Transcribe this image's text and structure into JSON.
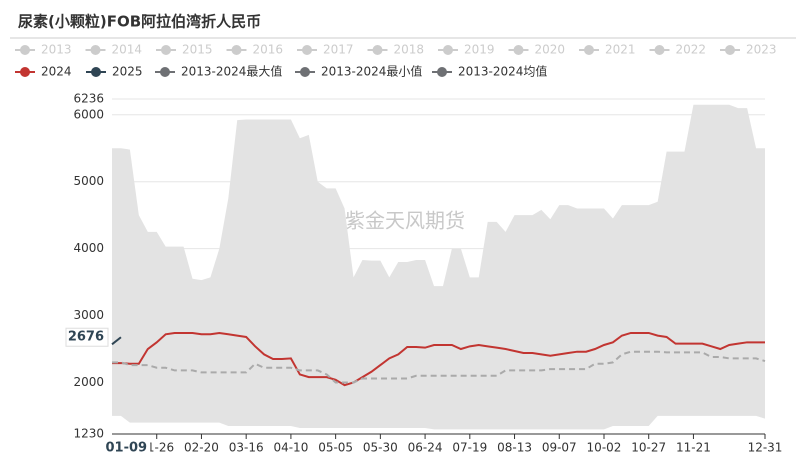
{
  "chart_data": {
    "type": "line",
    "title": "尿素(小颗粒)FOB阿拉伯湾折人民币",
    "watermark": "紫金天风期货",
    "hidden_legend": [
      "2013",
      "2014",
      "2015",
      "2016",
      "2017",
      "2018",
      "2019",
      "2020",
      "2021",
      "2022",
      "2023"
    ],
    "hidden_color": "#cccccc",
    "categories": [
      null,
      null,
      null,
      null,
      null,
      "01-26",
      null,
      null,
      null,
      null,
      "02-20",
      null,
      null,
      null,
      null,
      "03-16",
      null,
      null,
      null,
      null,
      "04-10",
      null,
      null,
      null,
      null,
      "05-05",
      null,
      null,
      null,
      null,
      "05-30",
      null,
      null,
      null,
      null,
      "06-24",
      null,
      null,
      null,
      null,
      "07-19",
      null,
      null,
      null,
      null,
      "08-13",
      null,
      null,
      null,
      null,
      "09-07",
      null,
      null,
      null,
      null,
      "10-02",
      null,
      null,
      null,
      null,
      "10-27",
      null,
      null,
      null,
      null,
      "11-21",
      null,
      null,
      null,
      null,
      null,
      null,
      null,
      "12-31"
    ],
    "series": [
      {
        "name": "2024",
        "color": "#c23531",
        "style": "solid",
        "values": [
          2290,
          2290,
          2280,
          2280,
          2500,
          2600,
          2720,
          2740,
          2740,
          2740,
          2720,
          2720,
          2740,
          2720,
          2700,
          2680,
          2540,
          2420,
          2350,
          2350,
          2360,
          2120,
          2080,
          2080,
          2080,
          2040,
          1960,
          2000,
          2080,
          2160,
          2260,
          2360,
          2420,
          2530,
          2530,
          2520,
          2560,
          2560,
          2560,
          2500,
          2540,
          2560,
          2540,
          2520,
          2500,
          2470,
          2440,
          2440,
          2420,
          2400,
          2420,
          2440,
          2460,
          2460,
          2500,
          2560,
          2600,
          2700,
          2740,
          2740,
          2740,
          2700,
          2680,
          2580,
          2580,
          2580,
          2580,
          2540,
          2500,
          2560,
          2580,
          2600,
          2600,
          2600
        ]
      },
      {
        "name": "2025",
        "color": "#2f4554",
        "style": "solid",
        "values": [
          2570,
          2676,
          null,
          null,
          null,
          null,
          null,
          null,
          null,
          null,
          null,
          null,
          null,
          null,
          null,
          null,
          null,
          null,
          null,
          null,
          null,
          null,
          null,
          null,
          null,
          null,
          null,
          null,
          null,
          null,
          null,
          null,
          null,
          null,
          null,
          null,
          null,
          null,
          null,
          null,
          null,
          null,
          null,
          null,
          null,
          null,
          null,
          null,
          null,
          null,
          null,
          null,
          null,
          null,
          null,
          null,
          null,
          null,
          null,
          null,
          null,
          null,
          null,
          null,
          null,
          null,
          null,
          null,
          null,
          null,
          null,
          null,
          null,
          null
        ]
      },
      {
        "name": "2013-2024最大值",
        "color": "#6e7074",
        "style": "band-top",
        "values": [
          5500,
          5500,
          5480,
          4500,
          4250,
          4250,
          4030,
          4030,
          4030,
          3550,
          3530,
          3570,
          4000,
          4750,
          5920,
          5930,
          5930,
          5930,
          5930,
          5930,
          5930,
          5650,
          5700,
          5000,
          4900,
          4900,
          4600,
          3570,
          3830,
          3820,
          3820,
          3570,
          3800,
          3800,
          3830,
          3830,
          3440,
          3440,
          4000,
          4000,
          3570,
          3570,
          4400,
          4400,
          4250,
          4500,
          4500,
          4500,
          4580,
          4440,
          4650,
          4650,
          4600,
          4600,
          4600,
          4600,
          4450,
          4650,
          4650,
          4650,
          4650,
          4700,
          5450,
          5450,
          5450,
          6150,
          6150,
          6150,
          6150,
          6150,
          6100,
          6100,
          5500,
          5500
        ]
      },
      {
        "name": "2013-2024最小值",
        "color": "#6e7074",
        "style": "band-bottom",
        "values": [
          1500,
          1500,
          1400,
          1400,
          1400,
          1400,
          1400,
          1400,
          1400,
          1400,
          1400,
          1400,
          1400,
          1350,
          1350,
          1350,
          1350,
          1350,
          1350,
          1350,
          1350,
          1320,
          1320,
          1320,
          1320,
          1320,
          1320,
          1320,
          1320,
          1320,
          1320,
          1320,
          1320,
          1320,
          1320,
          1320,
          1300,
          1300,
          1300,
          1300,
          1300,
          1300,
          1300,
          1300,
          1300,
          1300,
          1300,
          1300,
          1300,
          1300,
          1300,
          1300,
          1300,
          1300,
          1300,
          1300,
          1350,
          1350,
          1350,
          1350,
          1350,
          1500,
          1500,
          1500,
          1500,
          1500,
          1500,
          1500,
          1500,
          1500,
          1500,
          1500,
          1500,
          1460
        ]
      },
      {
        "name": "2013-2024均值",
        "color": "#6e7074",
        "style": "dashed",
        "line_color": "#aaaaaa",
        "values": [
          2300,
          2300,
          2260,
          2260,
          2260,
          2220,
          2220,
          2180,
          2180,
          2180,
          2150,
          2150,
          2150,
          2150,
          2150,
          2150,
          2280,
          2220,
          2220,
          2220,
          2220,
          2180,
          2180,
          2180,
          2120,
          2000,
          2000,
          2000,
          2060,
          2060,
          2060,
          2060,
          2060,
          2060,
          2100,
          2100,
          2100,
          2100,
          2100,
          2100,
          2100,
          2100,
          2100,
          2100,
          2180,
          2180,
          2180,
          2180,
          2180,
          2200,
          2200,
          2200,
          2200,
          2200,
          2280,
          2280,
          2300,
          2420,
          2460,
          2460,
          2460,
          2460,
          2450,
          2450,
          2450,
          2450,
          2450,
          2380,
          2380,
          2360,
          2360,
          2360,
          2360,
          2320
        ]
      }
    ],
    "band_color": "#e3e3e3",
    "ylim": [
      1230,
      6236
    ],
    "yticks": [
      1230,
      2000,
      3000,
      4000,
      5000,
      6000,
      6236
    ],
    "grid": true,
    "pointer": {
      "x_label": "01-09",
      "y_label": 2676
    }
  }
}
